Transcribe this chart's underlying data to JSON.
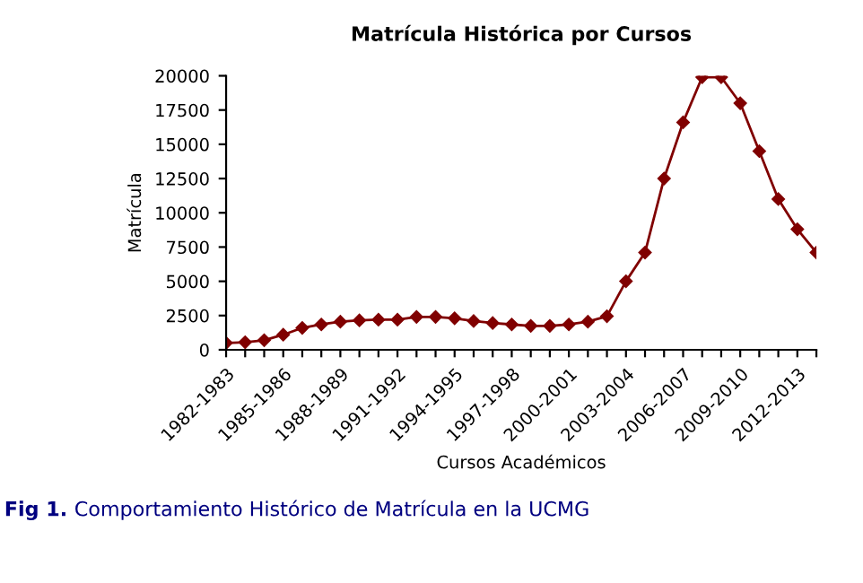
{
  "chart_data": {
    "type": "line",
    "title": "Matrícula Histórica por Cursos",
    "xlabel": "Cursos Académicos",
    "ylabel": "Matrícula",
    "categories": [
      "1982-1983",
      null,
      null,
      "1985-1986",
      null,
      null,
      "1988-1989",
      null,
      null,
      "1991-1992",
      null,
      null,
      "1994-1995",
      null,
      null,
      "1997-1998",
      null,
      null,
      "2000-2001",
      null,
      null,
      "2003-2004",
      null,
      null,
      "2006-2007",
      null,
      null,
      "2009-2010",
      null,
      null,
      "2012-2013",
      null
    ],
    "series": [
      {
        "color": "#800000",
        "values": [
          500,
          550,
          700,
          1100,
          1600,
          1850,
          2050,
          2150,
          2200,
          2200,
          2400,
          2400,
          2300,
          2100,
          1950,
          1850,
          1750,
          1750,
          1850,
          2050,
          2450,
          5000,
          7100,
          12500,
          16600,
          19900,
          19900,
          18000,
          14500,
          11000,
          8800,
          7100
        ]
      }
    ],
    "ylim": [
      0,
      20000
    ],
    "yticks": [
      0,
      2500,
      5000,
      7500,
      10000,
      12500,
      15000,
      17500,
      20000
    ],
    "marker": "diamond",
    "line_style": "solid",
    "grid": false,
    "legend": false,
    "annotations": [
      "Fig 1.",
      "Comportamiento Histórico de Matrícula en la UCMG"
    ]
  }
}
